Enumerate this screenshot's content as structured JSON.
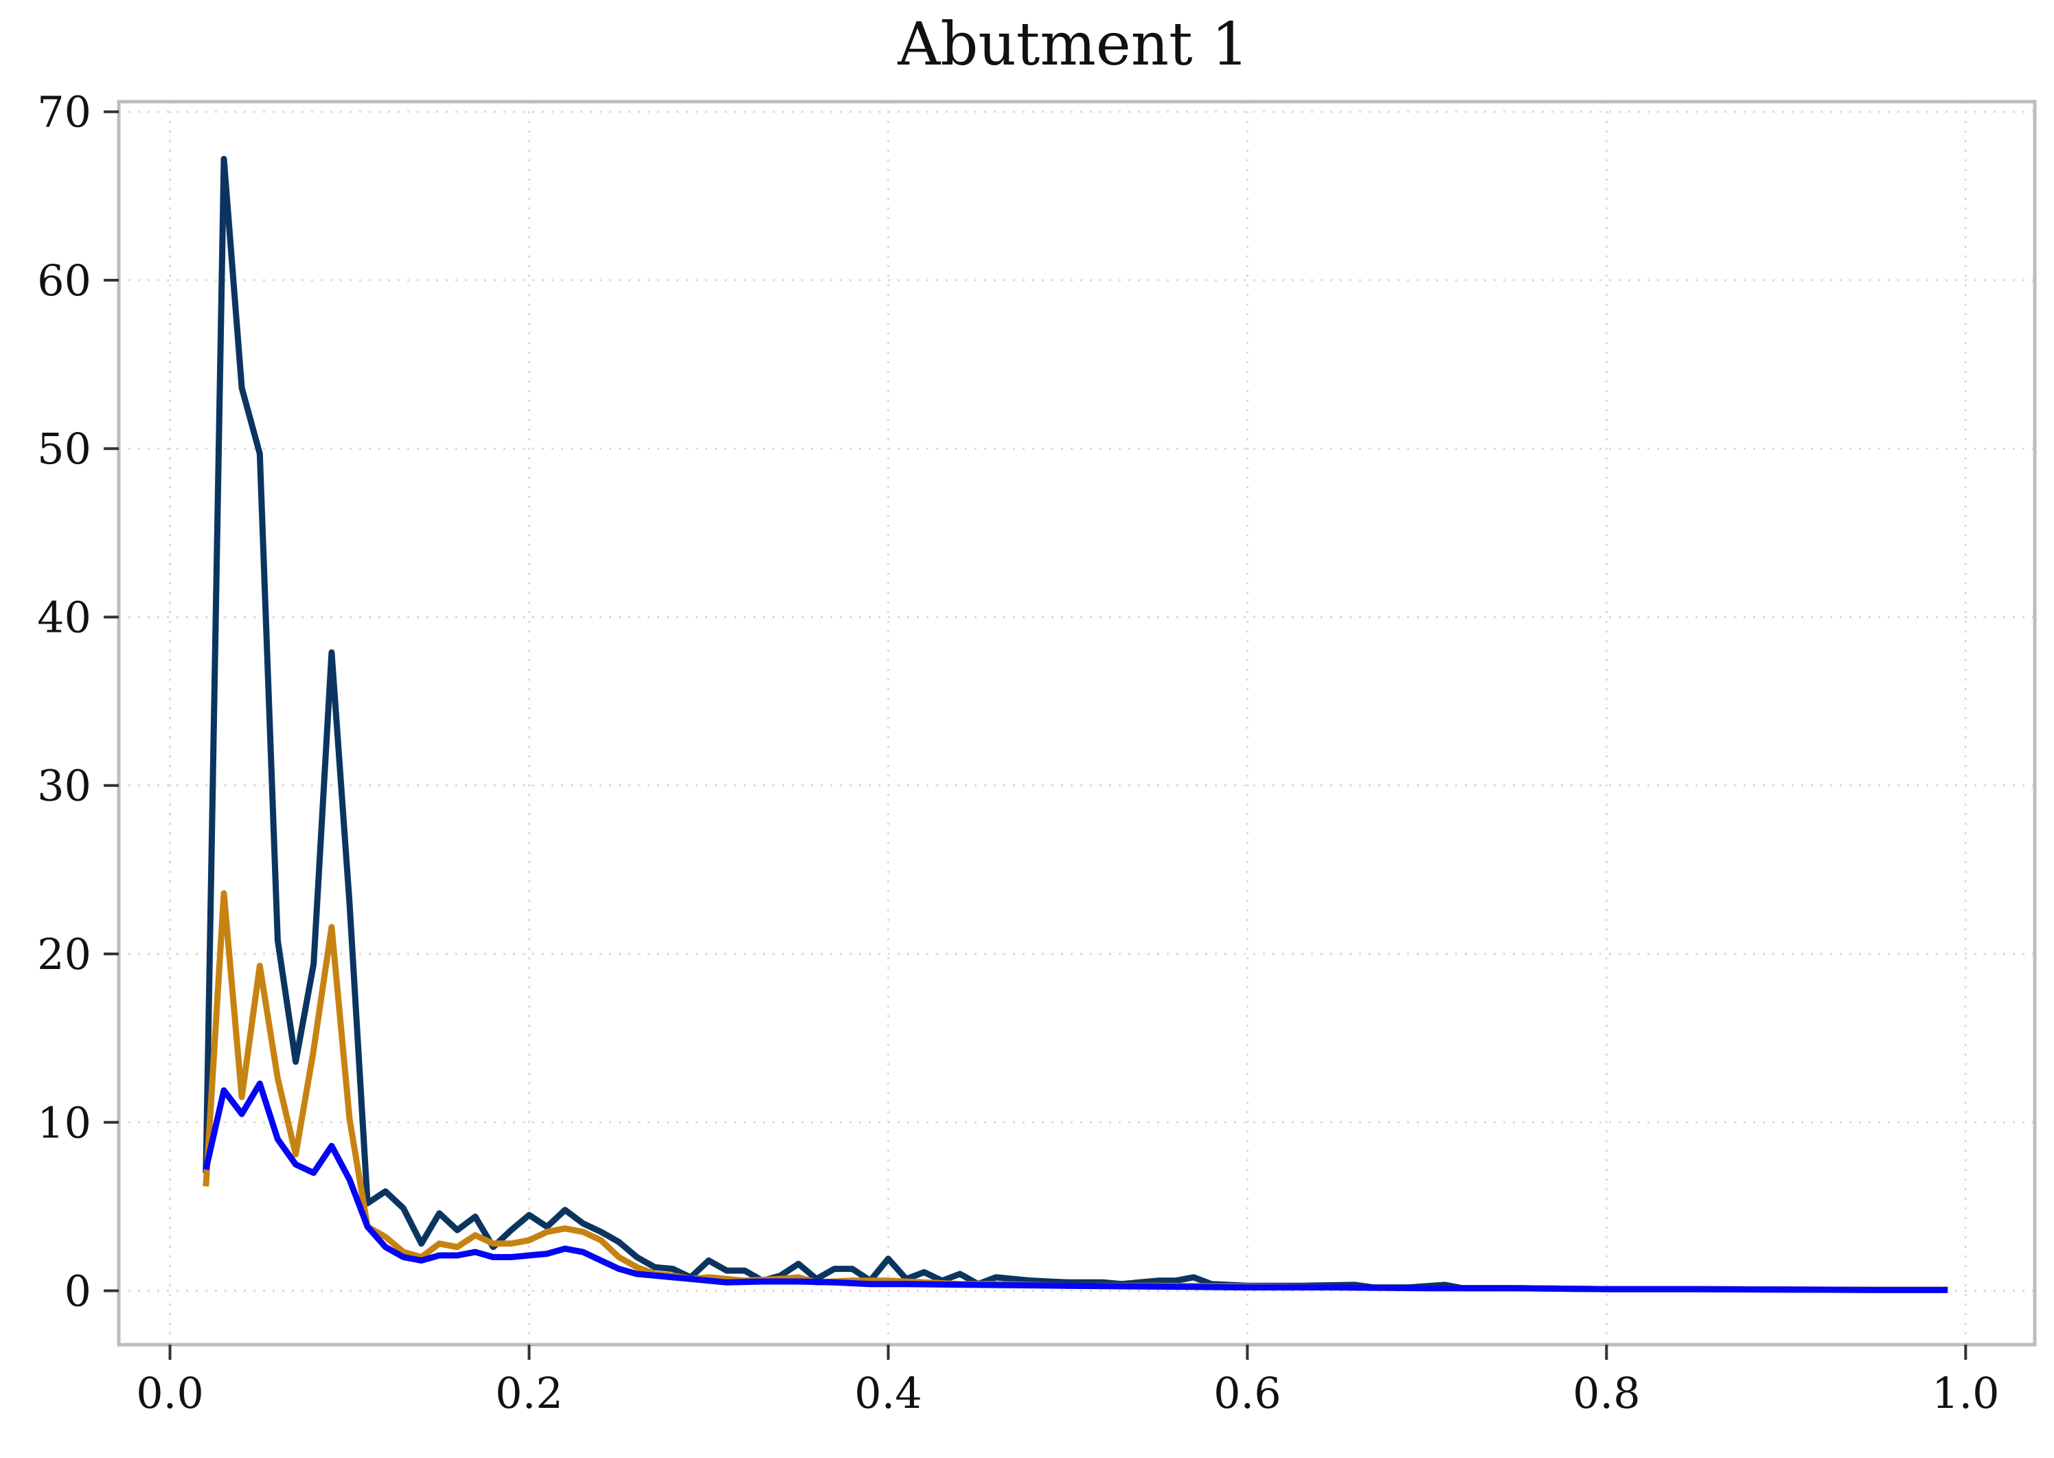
{
  "chart_data": {
    "type": "line",
    "title": "Abutment 1",
    "xlabel": "",
    "ylabel": "",
    "xlim": [
      -0.0285,
      1.0385
    ],
    "ylim": [
      -3.2,
      70.6
    ],
    "xticks": [
      0.0,
      0.2,
      0.4,
      0.6,
      0.8,
      1.0
    ],
    "xtick_labels": [
      "0.0",
      "0.2",
      "0.4",
      "0.6",
      "0.8",
      "1.0"
    ],
    "yticks": [
      0,
      10,
      20,
      30,
      40,
      50,
      60,
      70
    ],
    "ytick_labels": [
      "0",
      "10",
      "20",
      "30",
      "40",
      "50",
      "60",
      "70"
    ],
    "grid": true,
    "legend": null,
    "series": [
      {
        "color": "#0b3560",
        "points": [
          [
            0.02,
            7.0
          ],
          [
            0.03,
            67.2
          ],
          [
            0.04,
            53.6
          ],
          [
            0.05,
            49.7
          ],
          [
            0.06,
            20.8
          ],
          [
            0.07,
            13.6
          ],
          [
            0.08,
            19.4
          ],
          [
            0.09,
            37.9
          ],
          [
            0.1,
            23.0
          ],
          [
            0.11,
            5.2
          ],
          [
            0.12,
            5.9
          ],
          [
            0.13,
            4.9
          ],
          [
            0.14,
            2.8
          ],
          [
            0.15,
            4.6
          ],
          [
            0.16,
            3.6
          ],
          [
            0.17,
            4.4
          ],
          [
            0.18,
            2.6
          ],
          [
            0.19,
            3.6
          ],
          [
            0.2,
            4.5
          ],
          [
            0.21,
            3.8
          ],
          [
            0.22,
            4.8
          ],
          [
            0.23,
            4.0
          ],
          [
            0.24,
            3.5
          ],
          [
            0.25,
            2.9
          ],
          [
            0.26,
            2.0
          ],
          [
            0.27,
            1.4
          ],
          [
            0.28,
            1.3
          ],
          [
            0.29,
            0.8
          ],
          [
            0.3,
            1.8
          ],
          [
            0.31,
            1.2
          ],
          [
            0.32,
            1.2
          ],
          [
            0.33,
            0.6
          ],
          [
            0.34,
            0.9
          ],
          [
            0.35,
            1.6
          ],
          [
            0.36,
            0.7
          ],
          [
            0.37,
            1.3
          ],
          [
            0.38,
            1.3
          ],
          [
            0.39,
            0.6
          ],
          [
            0.4,
            1.9
          ],
          [
            0.41,
            0.7
          ],
          [
            0.42,
            1.1
          ],
          [
            0.43,
            0.6
          ],
          [
            0.44,
            1.0
          ],
          [
            0.45,
            0.4
          ],
          [
            0.46,
            0.8
          ],
          [
            0.47,
            0.7
          ],
          [
            0.48,
            0.6
          ],
          [
            0.5,
            0.5
          ],
          [
            0.52,
            0.5
          ],
          [
            0.53,
            0.4
          ],
          [
            0.55,
            0.6
          ],
          [
            0.56,
            0.6
          ],
          [
            0.57,
            0.8
          ],
          [
            0.58,
            0.4
          ],
          [
            0.6,
            0.3
          ],
          [
            0.63,
            0.3
          ],
          [
            0.66,
            0.35
          ],
          [
            0.67,
            0.2
          ],
          [
            0.69,
            0.2
          ],
          [
            0.71,
            0.35
          ],
          [
            0.72,
            0.15
          ],
          [
            0.75,
            0.15
          ],
          [
            0.8,
            0.1
          ],
          [
            0.85,
            0.1
          ],
          [
            0.9,
            0.07
          ],
          [
            0.95,
            0.05
          ],
          [
            0.99,
            0.05
          ]
        ]
      },
      {
        "color": "#c78311",
        "points": [
          [
            0.02,
            6.2
          ],
          [
            0.03,
            23.6
          ],
          [
            0.04,
            11.5
          ],
          [
            0.05,
            19.3
          ],
          [
            0.06,
            12.6
          ],
          [
            0.07,
            8.1
          ],
          [
            0.08,
            14.3
          ],
          [
            0.09,
            21.6
          ],
          [
            0.1,
            10.2
          ],
          [
            0.11,
            3.8
          ],
          [
            0.12,
            3.2
          ],
          [
            0.13,
            2.3
          ],
          [
            0.14,
            2.0
          ],
          [
            0.15,
            2.8
          ],
          [
            0.16,
            2.6
          ],
          [
            0.17,
            3.3
          ],
          [
            0.18,
            2.8
          ],
          [
            0.19,
            2.8
          ],
          [
            0.2,
            3.0
          ],
          [
            0.21,
            3.5
          ],
          [
            0.22,
            3.7
          ],
          [
            0.23,
            3.5
          ],
          [
            0.24,
            3.0
          ],
          [
            0.25,
            2.0
          ],
          [
            0.26,
            1.4
          ],
          [
            0.27,
            1.0
          ],
          [
            0.28,
            0.9
          ],
          [
            0.29,
            0.7
          ],
          [
            0.3,
            0.8
          ],
          [
            0.32,
            0.6
          ],
          [
            0.34,
            0.7
          ],
          [
            0.35,
            0.8
          ],
          [
            0.36,
            0.5
          ],
          [
            0.38,
            0.6
          ],
          [
            0.4,
            0.6
          ],
          [
            0.42,
            0.5
          ],
          [
            0.44,
            0.4
          ],
          [
            0.46,
            0.4
          ],
          [
            0.5,
            0.3
          ],
          [
            0.55,
            0.3
          ],
          [
            0.6,
            0.25
          ],
          [
            0.65,
            0.2
          ],
          [
            0.7,
            0.15
          ],
          [
            0.75,
            0.15
          ],
          [
            0.8,
            0.1
          ],
          [
            0.85,
            0.1
          ],
          [
            0.9,
            0.07
          ],
          [
            0.95,
            0.05
          ],
          [
            0.99,
            0.05
          ]
        ]
      },
      {
        "color": "#0505f5",
        "points": [
          [
            0.02,
            7.2
          ],
          [
            0.03,
            11.9
          ],
          [
            0.04,
            10.5
          ],
          [
            0.05,
            12.3
          ],
          [
            0.06,
            9.0
          ],
          [
            0.07,
            7.5
          ],
          [
            0.08,
            7.0
          ],
          [
            0.09,
            8.6
          ],
          [
            0.1,
            6.6
          ],
          [
            0.11,
            3.8
          ],
          [
            0.12,
            2.6
          ],
          [
            0.13,
            2.0
          ],
          [
            0.14,
            1.8
          ],
          [
            0.15,
            2.1
          ],
          [
            0.16,
            2.1
          ],
          [
            0.17,
            2.3
          ],
          [
            0.18,
            2.0
          ],
          [
            0.19,
            2.0
          ],
          [
            0.2,
            2.1
          ],
          [
            0.21,
            2.2
          ],
          [
            0.22,
            2.5
          ],
          [
            0.23,
            2.3
          ],
          [
            0.24,
            1.8
          ],
          [
            0.25,
            1.3
          ],
          [
            0.26,
            1.0
          ],
          [
            0.27,
            0.9
          ],
          [
            0.28,
            0.8
          ],
          [
            0.29,
            0.7
          ],
          [
            0.3,
            0.6
          ],
          [
            0.31,
            0.5
          ],
          [
            0.33,
            0.55
          ],
          [
            0.35,
            0.55
          ],
          [
            0.37,
            0.5
          ],
          [
            0.39,
            0.4
          ],
          [
            0.41,
            0.4
          ],
          [
            0.45,
            0.35
          ],
          [
            0.5,
            0.3
          ],
          [
            0.55,
            0.25
          ],
          [
            0.6,
            0.2
          ],
          [
            0.65,
            0.2
          ],
          [
            0.7,
            0.15
          ],
          [
            0.75,
            0.15
          ],
          [
            0.8,
            0.1
          ],
          [
            0.85,
            0.1
          ],
          [
            0.9,
            0.07
          ],
          [
            0.95,
            0.05
          ],
          [
            0.99,
            0.05
          ]
        ]
      }
    ]
  }
}
